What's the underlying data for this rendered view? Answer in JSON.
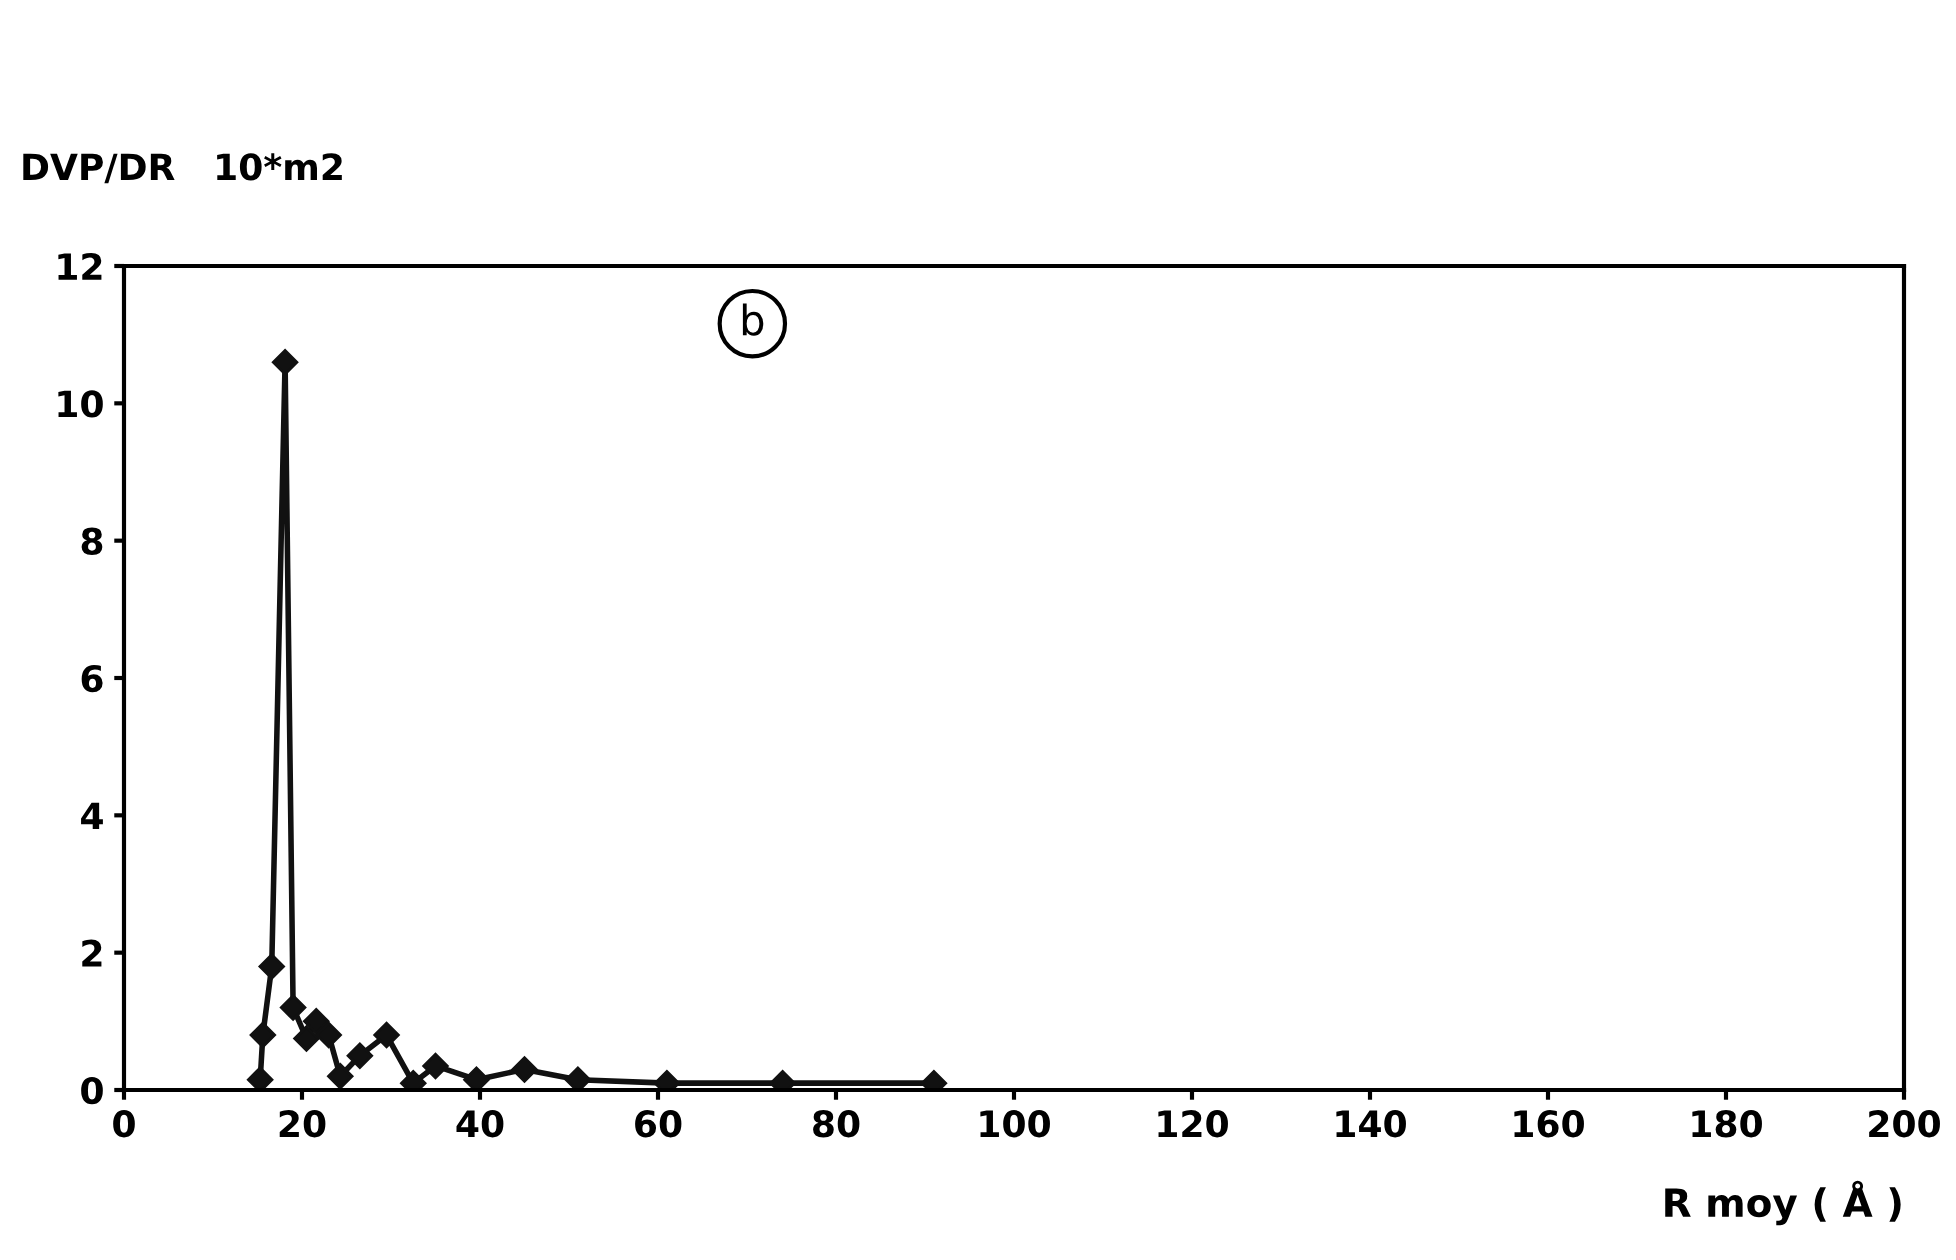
{
  "chart_data": {
    "type": "line",
    "ylabel": "DVP/DR   10*m2",
    "xlabel": "R moy ( Å )",
    "annotations": [
      "b"
    ],
    "x": [
      15.3,
      15.6,
      16.6,
      18.1,
      19,
      20.5,
      21.6,
      23,
      24.3,
      26.5,
      29.5,
      32.5,
      35,
      39.6,
      45,
      51,
      61,
      74,
      91
    ],
    "series": [
      {
        "color": "#111111",
        "values": [
          0.15,
          0.8,
          1.8,
          10.6,
          1.2,
          0.75,
          1.0,
          0.8,
          0.2,
          0.5,
          0.8,
          0.1,
          0.35,
          0.15,
          0.3,
          0.15,
          0.1,
          0.1,
          0.1
        ]
      }
    ],
    "xlim": [
      0,
      200
    ],
    "ylim": [
      0,
      12
    ],
    "xticks": [
      0,
      20,
      40,
      60,
      80,
      100,
      120,
      140,
      160,
      180,
      200
    ],
    "yticks": [
      0,
      2,
      4,
      6,
      8,
      10,
      12
    ],
    "marker": "diamond",
    "line_style": "solid",
    "grid": false,
    "legend": false
  }
}
